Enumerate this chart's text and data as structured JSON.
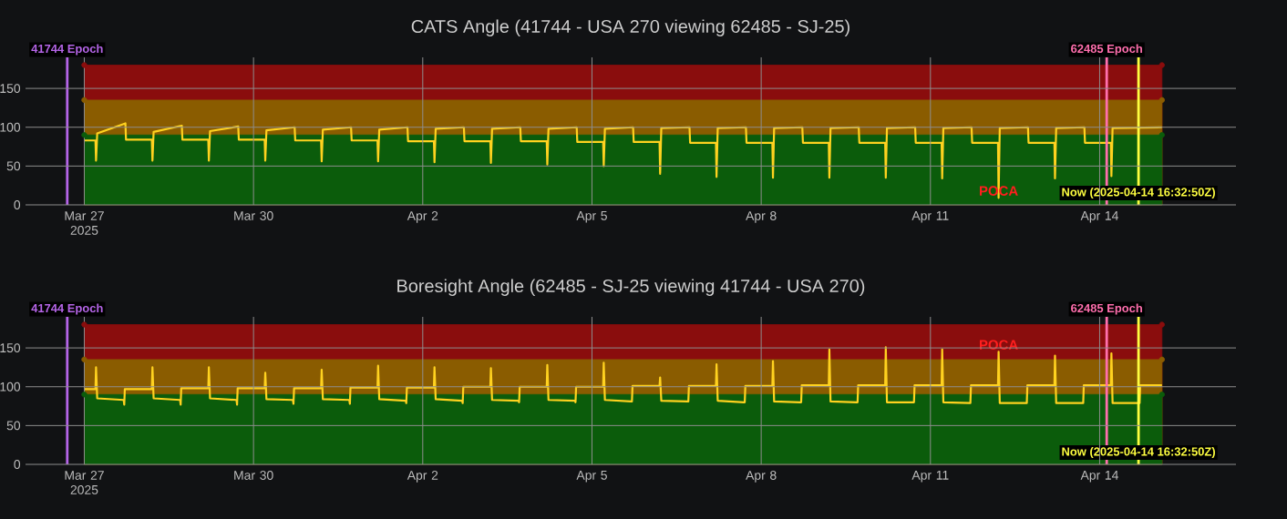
{
  "chart_data": [
    {
      "type": "line",
      "title": "CATS Angle (41744 - USA 270 viewing 62485 - SJ-25)",
      "xlim": [
        "2025-03-25T23:00",
        "2025-04-16T10:00"
      ],
      "ylim": [
        0,
        190
      ],
      "xticks": [
        {
          "value": "2025-03-27",
          "label": "Mar 27 2025"
        },
        {
          "value": "2025-03-30",
          "label": "Mar 30"
        },
        {
          "value": "2025-04-02",
          "label": "Apr 2"
        },
        {
          "value": "2025-04-05",
          "label": "Apr 5"
        },
        {
          "value": "2025-04-08",
          "label": "Apr 8"
        },
        {
          "value": "2025-04-11",
          "label": "Apr 11"
        },
        {
          "value": "2025-04-14",
          "label": "Apr 14"
        }
      ],
      "yticks": [
        0,
        50,
        100,
        150
      ],
      "grid": true,
      "series": [
        {
          "type": "area",
          "color": "#8a0d0d",
          "marker": "circle",
          "x": [
            "2025-03-27T00:00",
            "2025-04-15T02:30"
          ],
          "values": [
            180,
            180
          ]
        },
        {
          "type": "area",
          "color": "#8a5c00",
          "marker": "circle",
          "x": [
            "2025-03-27T00:00",
            "2025-04-15T02:30"
          ],
          "values": [
            135,
            135
          ]
        },
        {
          "type": "area",
          "color": "#0b5c0b",
          "marker": "circle",
          "x": [
            "2025-03-27T00:00",
            "2025-04-15T02:30"
          ],
          "values": [
            90,
            90
          ]
        },
        {
          "color": "#ffd21f",
          "x": [
            "2025-03-27T00:00",
            "2025-03-27T04:45",
            "2025-03-27T05:00",
            "2025-03-27T05:30",
            "2025-03-27T17:30",
            "2025-03-27T17:45",
            "2025-03-28T04:45",
            "2025-03-28T05:00",
            "2025-03-28T05:30",
            "2025-03-28T17:30",
            "2025-03-28T17:45",
            "2025-03-29T04:45",
            "2025-03-29T05:00",
            "2025-03-29T05:30",
            "2025-03-29T17:30",
            "2025-03-29T17:45",
            "2025-03-30T04:45",
            "2025-03-30T05:00",
            "2025-03-30T05:30",
            "2025-03-30T17:30",
            "2025-03-30T17:45",
            "2025-03-31T04:45",
            "2025-03-31T05:00",
            "2025-03-31T05:30",
            "2025-03-31T17:30",
            "2025-03-31T17:45",
            "2025-04-01T04:45",
            "2025-04-01T05:00",
            "2025-04-01T05:30",
            "2025-04-01T17:30",
            "2025-04-01T17:45",
            "2025-04-02T04:45",
            "2025-04-02T05:00",
            "2025-04-02T05:30",
            "2025-04-02T17:30",
            "2025-04-02T17:45",
            "2025-04-03T04:45",
            "2025-04-03T05:00",
            "2025-04-03T05:30",
            "2025-04-03T17:30",
            "2025-04-03T17:45",
            "2025-04-04T04:45",
            "2025-04-04T05:00",
            "2025-04-04T05:30",
            "2025-04-04T17:30",
            "2025-04-04T17:45",
            "2025-04-05T04:45",
            "2025-04-05T05:00",
            "2025-04-05T05:30",
            "2025-04-05T17:30",
            "2025-04-05T17:45",
            "2025-04-06T04:45",
            "2025-04-06T05:00",
            "2025-04-06T05:30",
            "2025-04-06T17:30",
            "2025-04-06T17:45",
            "2025-04-07T04:45",
            "2025-04-07T05:00",
            "2025-04-07T05:30",
            "2025-04-07T17:30",
            "2025-04-07T17:45",
            "2025-04-08T04:45",
            "2025-04-08T05:00",
            "2025-04-08T05:30",
            "2025-04-08T17:30",
            "2025-04-08T17:45",
            "2025-04-09T04:45",
            "2025-04-09T05:00",
            "2025-04-09T05:30",
            "2025-04-09T17:30",
            "2025-04-09T17:45",
            "2025-04-10T04:45",
            "2025-04-10T05:00",
            "2025-04-10T05:30",
            "2025-04-10T17:30",
            "2025-04-10T17:45",
            "2025-04-11T04:45",
            "2025-04-11T05:00",
            "2025-04-11T05:30",
            "2025-04-11T17:30",
            "2025-04-11T17:45",
            "2025-04-12T04:45",
            "2025-04-12T05:00",
            "2025-04-12T05:30",
            "2025-04-12T17:30",
            "2025-04-12T17:45",
            "2025-04-13T04:45",
            "2025-04-13T05:00",
            "2025-04-13T05:30",
            "2025-04-13T17:30",
            "2025-04-13T17:45",
            "2025-04-14T04:45",
            "2025-04-14T05:00",
            "2025-04-14T05:30",
            "2025-04-15T02:30"
          ],
          "values": [
            83,
            83,
            57,
            92,
            105,
            84,
            84,
            57,
            94,
            102,
            84,
            84,
            57,
            95,
            101,
            84,
            84,
            57,
            96,
            100,
            83,
            83,
            56,
            97,
            100,
            83,
            83,
            56,
            97,
            100,
            82,
            82,
            55,
            98,
            100,
            82,
            82,
            54,
            98,
            100,
            82,
            82,
            52,
            98,
            100,
            81,
            81,
            50,
            98,
            100,
            81,
            81,
            40,
            99,
            100,
            80,
            80,
            36,
            99,
            100,
            80,
            80,
            35,
            99,
            100,
            80,
            80,
            35,
            99,
            100,
            80,
            80,
            35,
            99,
            100,
            80,
            80,
            34,
            99,
            100,
            80,
            80,
            9,
            99,
            100,
            80,
            80,
            34,
            99,
            100,
            80,
            80,
            37,
            99,
            100
          ]
        }
      ],
      "ref_lines": [
        {
          "axis": "x",
          "value": "2025-03-26T16:45",
          "label": "41744 Epoch",
          "color": "#b565e8"
        },
        {
          "axis": "x",
          "value": "2025-04-14T03:00",
          "label": "62485 Epoch",
          "color": "#ff6fae"
        },
        {
          "axis": "x",
          "value": "2025-04-14T16:32",
          "label": "Now (2025-04-14 16:32:50Z)",
          "color": "#ffff40"
        }
      ],
      "annotations": [
        {
          "text": "POCA",
          "x": "2025-04-12T05:00",
          "y": 9
        }
      ]
    },
    {
      "type": "line",
      "title": "Boresight Angle (62485 - SJ-25 viewing 41744 - USA 270)",
      "xlim": [
        "2025-03-25T23:00",
        "2025-04-16T10:00"
      ],
      "ylim": [
        0,
        190
      ],
      "xticks": [
        {
          "value": "2025-03-27",
          "label": "Mar 27 2025"
        },
        {
          "value": "2025-03-30",
          "label": "Mar 30"
        },
        {
          "value": "2025-04-02",
          "label": "Apr 2"
        },
        {
          "value": "2025-04-05",
          "label": "Apr 5"
        },
        {
          "value": "2025-04-08",
          "label": "Apr 8"
        },
        {
          "value": "2025-04-11",
          "label": "Apr 11"
        },
        {
          "value": "2025-04-14",
          "label": "Apr 14"
        }
      ],
      "yticks": [
        0,
        50,
        100,
        150
      ],
      "grid": true,
      "series": [
        {
          "type": "area",
          "color": "#8a0d0d",
          "marker": "circle",
          "x": [
            "2025-03-27T00:00",
            "2025-04-15T02:30"
          ],
          "values": [
            180,
            180
          ]
        },
        {
          "type": "area",
          "color": "#8a5c00",
          "marker": "circle",
          "x": [
            "2025-03-27T00:00",
            "2025-04-15T02:30"
          ],
          "values": [
            135,
            135
          ]
        },
        {
          "type": "area",
          "color": "#0b5c0b",
          "marker": "circle",
          "x": [
            "2025-03-27T00:00",
            "2025-04-15T02:30"
          ],
          "values": [
            90,
            90
          ]
        },
        {
          "color": "#ffd21f",
          "x": [
            "2025-03-27T00:00",
            "2025-03-27T04:45",
            "2025-03-27T05:00",
            "2025-03-27T05:30",
            "2025-03-27T16:45",
            "2025-03-27T17:00",
            "2025-03-27T17:15",
            "2025-03-28T04:45",
            "2025-03-28T05:00",
            "2025-03-28T05:30",
            "2025-03-28T16:45",
            "2025-03-28T17:00",
            "2025-03-28T17:15",
            "2025-03-29T04:45",
            "2025-03-29T05:00",
            "2025-03-29T05:30",
            "2025-03-29T16:45",
            "2025-03-29T17:00",
            "2025-03-29T17:15",
            "2025-03-30T04:45",
            "2025-03-30T05:00",
            "2025-03-30T05:30",
            "2025-03-30T16:45",
            "2025-03-30T17:00",
            "2025-03-30T17:15",
            "2025-03-31T04:45",
            "2025-03-31T05:00",
            "2025-03-31T05:30",
            "2025-03-31T16:45",
            "2025-03-31T17:00",
            "2025-03-31T17:15",
            "2025-04-01T04:45",
            "2025-04-01T05:00",
            "2025-04-01T05:30",
            "2025-04-01T16:45",
            "2025-04-01T17:00",
            "2025-04-01T17:15",
            "2025-04-02T04:45",
            "2025-04-02T05:00",
            "2025-04-02T05:30",
            "2025-04-02T16:45",
            "2025-04-02T17:00",
            "2025-04-02T17:15",
            "2025-04-03T04:45",
            "2025-04-03T05:00",
            "2025-04-03T05:30",
            "2025-04-03T16:45",
            "2025-04-03T17:00",
            "2025-04-03T17:15",
            "2025-04-04T04:45",
            "2025-04-04T05:00",
            "2025-04-04T05:30",
            "2025-04-04T16:45",
            "2025-04-04T17:00",
            "2025-04-04T17:15",
            "2025-04-05T04:45",
            "2025-04-05T05:00",
            "2025-04-05T05:30",
            "2025-04-05T16:45",
            "2025-04-05T17:00",
            "2025-04-05T17:15",
            "2025-04-06T04:45",
            "2025-04-06T05:00",
            "2025-04-06T05:30",
            "2025-04-06T16:45",
            "2025-04-06T17:00",
            "2025-04-06T17:15",
            "2025-04-07T04:45",
            "2025-04-07T05:00",
            "2025-04-07T05:30",
            "2025-04-07T16:45",
            "2025-04-07T17:00",
            "2025-04-07T17:15",
            "2025-04-08T04:45",
            "2025-04-08T05:00",
            "2025-04-08T05:30",
            "2025-04-08T16:45",
            "2025-04-08T17:00",
            "2025-04-08T17:15",
            "2025-04-09T04:45",
            "2025-04-09T05:00",
            "2025-04-09T05:30",
            "2025-04-09T16:45",
            "2025-04-09T17:00",
            "2025-04-09T17:15",
            "2025-04-10T04:45",
            "2025-04-10T05:00",
            "2025-04-10T05:30",
            "2025-04-10T16:45",
            "2025-04-10T17:00",
            "2025-04-10T17:15",
            "2025-04-11T04:45",
            "2025-04-11T05:00",
            "2025-04-11T05:30",
            "2025-04-11T16:45",
            "2025-04-11T17:00",
            "2025-04-11T17:15",
            "2025-04-12T04:45",
            "2025-04-12T05:00",
            "2025-04-12T05:30",
            "2025-04-12T16:45",
            "2025-04-12T17:00",
            "2025-04-12T17:15",
            "2025-04-13T04:45",
            "2025-04-13T05:00",
            "2025-04-13T05:30",
            "2025-04-13T16:45",
            "2025-04-13T17:00",
            "2025-04-13T17:15",
            "2025-04-14T04:45",
            "2025-04-14T05:00",
            "2025-04-14T05:30",
            "2025-04-14T16:45",
            "2025-04-14T17:00",
            "2025-04-14T17:15",
            "2025-04-15T02:30"
          ],
          "values": [
            97,
            97,
            125,
            85,
            83,
            77,
            97,
            97,
            125,
            85,
            83,
            77,
            98,
            98,
            125,
            85,
            83,
            77,
            98,
            98,
            118,
            84,
            83,
            78,
            98,
            98,
            122,
            84,
            83,
            78,
            99,
            99,
            127,
            84,
            82,
            79,
            99,
            99,
            125,
            84,
            82,
            79,
            100,
            100,
            124,
            83,
            82,
            80,
            100,
            100,
            128,
            83,
            82,
            80,
            100,
            100,
            131,
            83,
            81,
            81,
            101,
            101,
            112,
            82,
            81,
            81,
            101,
            101,
            129,
            82,
            80,
            80,
            101,
            101,
            133,
            81,
            80,
            80,
            102,
            102,
            148,
            81,
            80,
            80,
            102,
            102,
            151,
            80,
            80,
            80,
            102,
            102,
            148,
            80,
            79,
            79,
            102,
            102,
            145,
            79,
            79,
            79,
            102,
            102,
            140,
            79,
            79,
            79,
            102,
            102,
            143,
            79,
            79,
            79,
            102,
            102
          ]
        }
      ],
      "ref_lines": [
        {
          "axis": "x",
          "value": "2025-03-26T16:45",
          "label": "41744 Epoch",
          "color": "#b565e8"
        },
        {
          "axis": "x",
          "value": "2025-04-14T03:00",
          "label": "62485 Epoch",
          "color": "#ff6fae"
        },
        {
          "axis": "x",
          "value": "2025-04-14T16:32",
          "label": "Now (2025-04-14 16:32:50Z)",
          "color": "#ffff40"
        }
      ],
      "annotations": [
        {
          "text": "POCA",
          "x": "2025-04-12T05:00",
          "y": 145
        }
      ]
    }
  ]
}
